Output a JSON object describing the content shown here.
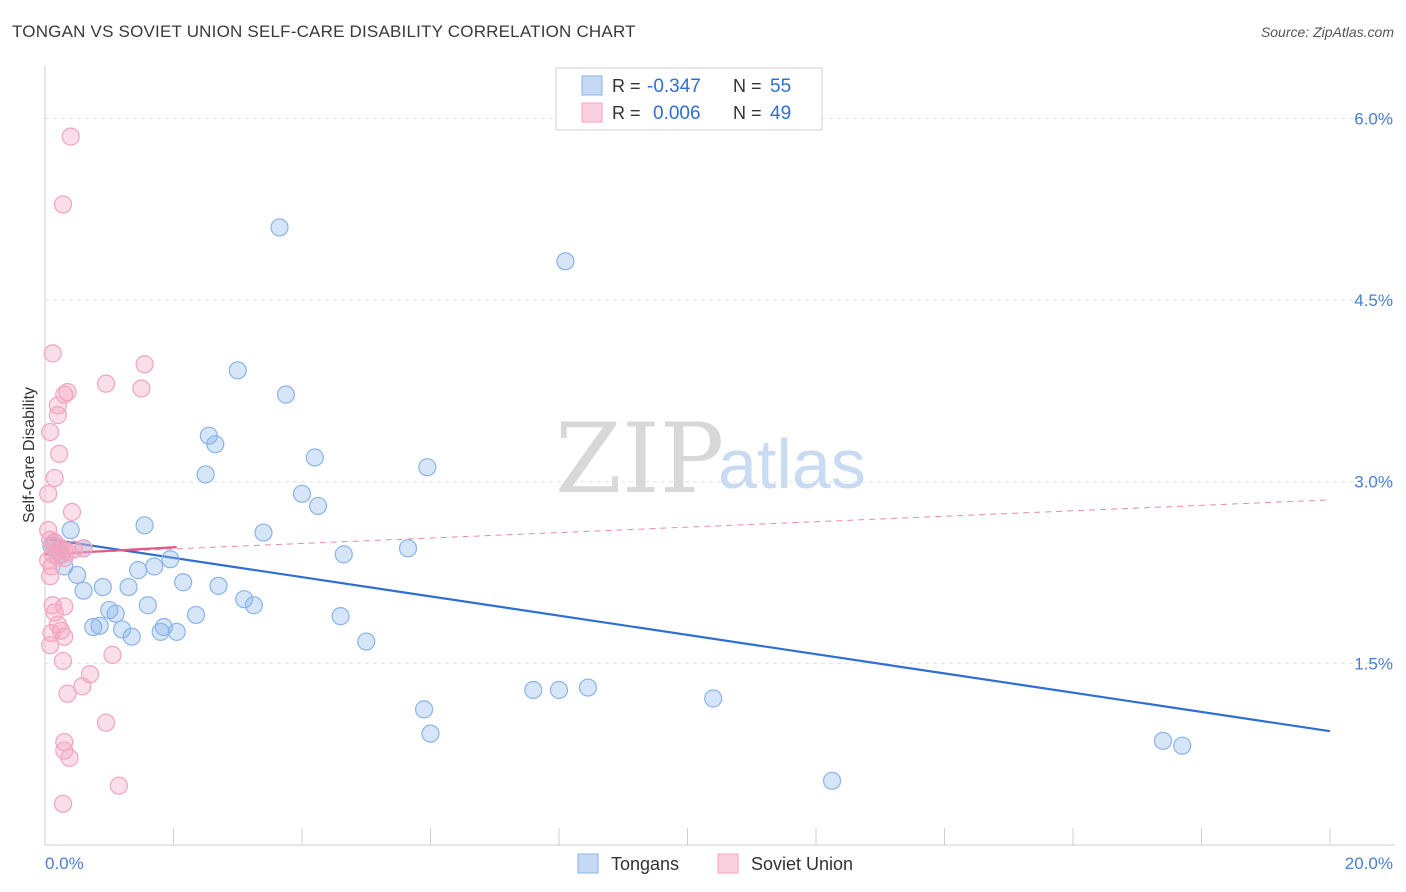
{
  "header": {
    "title": "TONGAN VS SOVIET UNION SELF-CARE DISABILITY CORRELATION CHART",
    "source": "Source: ZipAtlas.com"
  },
  "watermark": {
    "zip": "ZIP",
    "atlas": "atlas"
  },
  "chart_data": {
    "type": "scatter",
    "ylabel": "Self-Care Disability",
    "xlim": [
      0,
      20
    ],
    "ylim": [
      0,
      6.4
    ],
    "x_tick_labels": [
      {
        "value": 0,
        "label": "0.0%"
      },
      {
        "value": 20,
        "label": "20.0%"
      }
    ],
    "y_tick_labels": [
      {
        "value": 1.5,
        "label": "1.5%"
      },
      {
        "value": 3.0,
        "label": "3.0%"
      },
      {
        "value": 4.5,
        "label": "4.5%"
      },
      {
        "value": 6.0,
        "label": "6.0%"
      }
    ],
    "grid": "horizontal dashed",
    "legend_position": "top-center",
    "legend": [
      {
        "r_label": "R =",
        "r_value": "-0.347",
        "n_label": "N =",
        "n_value": "55"
      },
      {
        "r_label": "R =",
        "r_value": "0.006",
        "n_label": "N =",
        "n_value": "49"
      }
    ],
    "series": [
      {
        "name": "Tongans",
        "color": "#8ab4ea",
        "trend_color": "#2e6fd1",
        "trend": {
          "x": [
            0,
            20
          ],
          "y": [
            2.53,
            0.94
          ]
        },
        "points": [
          [
            3.65,
            5.1
          ],
          [
            8.1,
            4.82
          ],
          [
            3.0,
            3.92
          ],
          [
            3.75,
            3.72
          ],
          [
            2.55,
            3.38
          ],
          [
            2.65,
            3.31
          ],
          [
            4.2,
            3.2
          ],
          [
            5.95,
            3.12
          ],
          [
            2.5,
            3.06
          ],
          [
            4.0,
            2.9
          ],
          [
            4.25,
            2.8
          ],
          [
            1.55,
            2.64
          ],
          [
            0.4,
            2.6
          ],
          [
            3.4,
            2.58
          ],
          [
            0.6,
            2.45
          ],
          [
            5.65,
            2.45
          ],
          [
            4.65,
            2.4
          ],
          [
            1.95,
            2.36
          ],
          [
            0.3,
            2.3
          ],
          [
            1.7,
            2.3
          ],
          [
            1.45,
            2.27
          ],
          [
            0.5,
            2.23
          ],
          [
            2.15,
            2.17
          ],
          [
            0.6,
            2.1
          ],
          [
            1.3,
            2.13
          ],
          [
            0.9,
            2.13
          ],
          [
            2.7,
            2.14
          ],
          [
            3.1,
            2.03
          ],
          [
            3.25,
            1.98
          ],
          [
            1.6,
            1.98
          ],
          [
            1.0,
            1.94
          ],
          [
            1.1,
            1.91
          ],
          [
            2.35,
            1.9
          ],
          [
            4.6,
            1.89
          ],
          [
            0.85,
            1.81
          ],
          [
            0.75,
            1.8
          ],
          [
            1.85,
            1.8
          ],
          [
            1.2,
            1.78
          ],
          [
            1.8,
            1.76
          ],
          [
            2.05,
            1.76
          ],
          [
            1.35,
            1.72
          ],
          [
            5.0,
            1.68
          ],
          [
            7.6,
            1.28
          ],
          [
            8.0,
            1.28
          ],
          [
            8.45,
            1.3
          ],
          [
            10.4,
            1.21
          ],
          [
            5.9,
            1.12
          ],
          [
            6.0,
            0.92
          ],
          [
            17.4,
            0.86
          ],
          [
            17.7,
            0.82
          ],
          [
            12.25,
            0.53
          ],
          [
            0.1,
            2.47
          ],
          [
            0.2,
            2.43
          ],
          [
            0.15,
            2.5
          ],
          [
            0.25,
            2.4
          ]
        ]
      },
      {
        "name": "Soviet Union",
        "color": "#f4a3bd",
        "trend_color": "#e05a86",
        "trend": {
          "x": [
            0,
            2.05
          ],
          "y": [
            2.4,
            2.46
          ]
        },
        "trend_extended": {
          "x": [
            0,
            20
          ],
          "y": [
            2.4,
            2.85
          ]
        },
        "points": [
          [
            0.4,
            5.85
          ],
          [
            0.28,
            5.29
          ],
          [
            0.12,
            4.06
          ],
          [
            1.55,
            3.97
          ],
          [
            0.95,
            3.81
          ],
          [
            0.3,
            3.72
          ],
          [
            0.35,
            3.74
          ],
          [
            1.5,
            3.77
          ],
          [
            0.2,
            3.63
          ],
          [
            0.2,
            3.55
          ],
          [
            0.08,
            3.41
          ],
          [
            0.22,
            3.23
          ],
          [
            0.15,
            3.03
          ],
          [
            0.05,
            2.9
          ],
          [
            0.42,
            2.75
          ],
          [
            0.05,
            2.6
          ],
          [
            0.08,
            2.52
          ],
          [
            0.15,
            2.47
          ],
          [
            0.25,
            2.45
          ],
          [
            0.3,
            2.43
          ],
          [
            0.35,
            2.42
          ],
          [
            0.45,
            2.44
          ],
          [
            0.12,
            2.4
          ],
          [
            0.2,
            2.38
          ],
          [
            0.3,
            2.37
          ],
          [
            0.6,
            2.45
          ],
          [
            0.05,
            2.35
          ],
          [
            0.1,
            2.3
          ],
          [
            0.08,
            2.22
          ],
          [
            0.12,
            1.98
          ],
          [
            0.3,
            1.97
          ],
          [
            0.15,
            1.92
          ],
          [
            0.2,
            1.82
          ],
          [
            0.25,
            1.77
          ],
          [
            0.1,
            1.75
          ],
          [
            0.3,
            1.72
          ],
          [
            0.08,
            1.65
          ],
          [
            1.05,
            1.57
          ],
          [
            0.28,
            1.52
          ],
          [
            0.7,
            1.41
          ],
          [
            0.58,
            1.31
          ],
          [
            0.35,
            1.25
          ],
          [
            0.95,
            1.01
          ],
          [
            0.3,
            0.85
          ],
          [
            0.3,
            0.78
          ],
          [
            0.38,
            0.72
          ],
          [
            1.15,
            0.49
          ],
          [
            0.28,
            0.34
          ],
          [
            0.15,
            2.5
          ]
        ]
      }
    ]
  }
}
